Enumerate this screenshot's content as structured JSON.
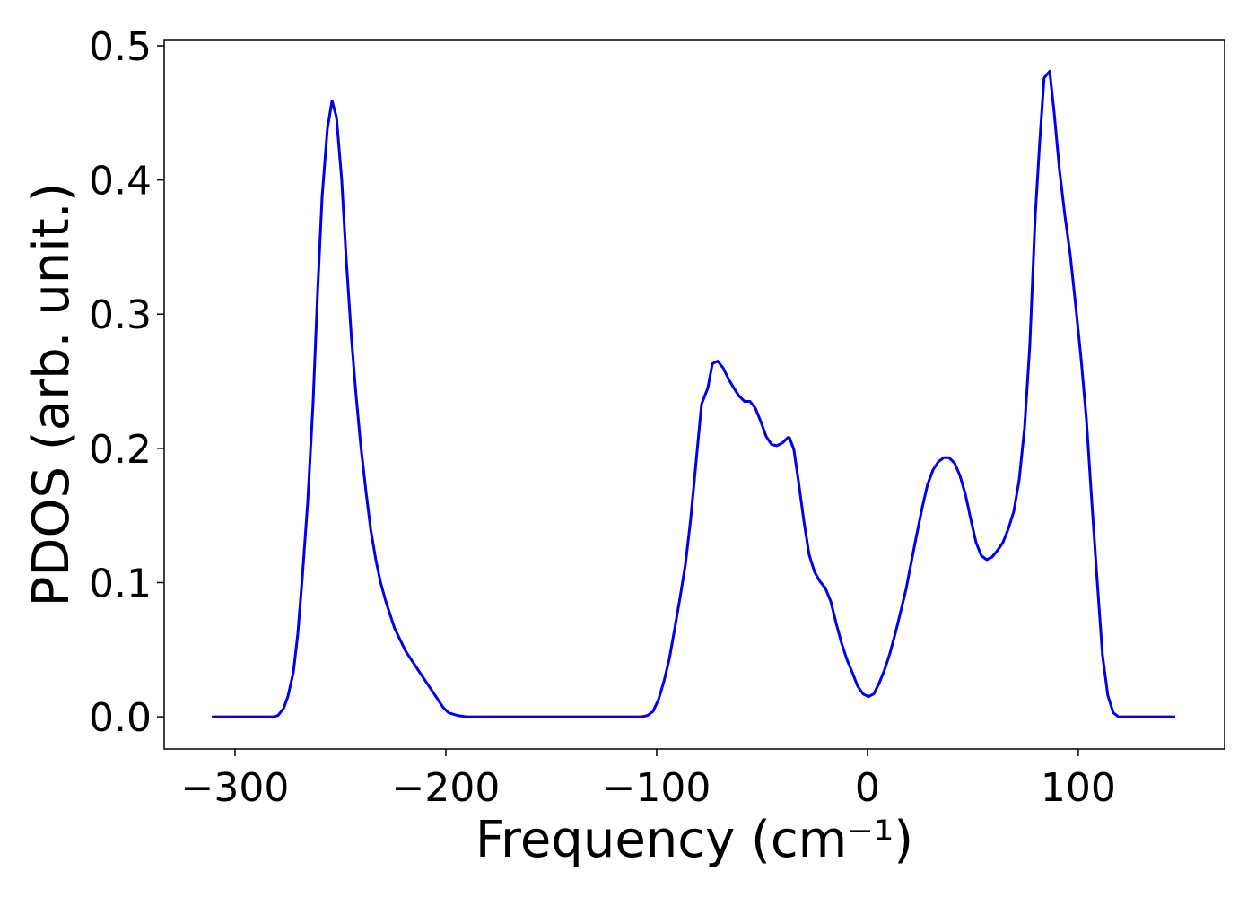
{
  "chart_data": {
    "type": "line",
    "xlabel": "Frequency (cm⁻¹)",
    "ylabel": "PDOS (arb. unit.)",
    "xlim": [
      -333.6,
      169.4
    ],
    "ylim": [
      -0.024,
      0.504
    ],
    "xticks": [
      {
        "value": -300,
        "label": "−300"
      },
      {
        "value": -200,
        "label": "−200"
      },
      {
        "value": -100,
        "label": "−100"
      },
      0,
      100
    ],
    "yticks": [
      {
        "value": 0,
        "label": "0.0"
      },
      0.1,
      0.2,
      0.3,
      0.4,
      0.5
    ],
    "grid": false,
    "series": [
      {
        "color": "#0000ee",
        "x": [
          -311,
          -281.7,
          -279.6,
          -277,
          -274.9,
          -272.3,
          -270.2,
          -268.1,
          -265.5,
          -263,
          -260.9,
          -258.7,
          -256.2,
          -254,
          -251.9,
          -249.4,
          -247.2,
          -244.7,
          -242.6,
          -240.4,
          -237.9,
          -235.7,
          -233.2,
          -231.1,
          -228.5,
          -224.3,
          -219.1,
          -213.2,
          -207.2,
          -201.3,
          -198.7,
          -194.5,
          -190.2,
          -107.2,
          -104.3,
          -101.7,
          -99.1,
          -96.6,
          -94,
          -91.5,
          -89,
          -86.4,
          -83.8,
          -81.3,
          -78.7,
          -75.7,
          -73.6,
          -71.1,
          -68.5,
          -66,
          -63.4,
          -60.9,
          -58.3,
          -55.7,
          -53.2,
          -50.6,
          -48.1,
          -45.5,
          -43,
          -40.4,
          -37.9,
          -37,
          -34.9,
          -32.8,
          -30.2,
          -27.7,
          -25.1,
          -22.6,
          -20,
          -17.4,
          -14.9,
          -12.3,
          -9.8,
          -7.2,
          -4.7,
          -2.1,
          0.4,
          3,
          5.5,
          8.1,
          10.6,
          13.2,
          15.7,
          18.3,
          20.9,
          23.4,
          26,
          28.5,
          31.1,
          33.6,
          36.2,
          38.7,
          41.3,
          43.8,
          46.4,
          48.9,
          51.5,
          54,
          56.6,
          59.1,
          61.7,
          64.3,
          66.8,
          69.4,
          71.9,
          74.5,
          77,
          79.6,
          81.7,
          83.8,
          86.4,
          88.5,
          91.1,
          93.6,
          96.2,
          98.7,
          101.3,
          103.8,
          106.4,
          109,
          111.5,
          114,
          116.6,
          119.1,
          146
        ],
        "values": [
          0,
          0,
          0.001,
          0.006,
          0.015,
          0.033,
          0.062,
          0.103,
          0.16,
          0.233,
          0.313,
          0.387,
          0.438,
          0.459,
          0.447,
          0.4,
          0.34,
          0.281,
          0.24,
          0.203,
          0.168,
          0.14,
          0.117,
          0.101,
          0.086,
          0.066,
          0.049,
          0.035,
          0.021,
          0.007,
          0.003,
          0.001,
          0,
          0,
          0.001,
          0.004,
          0.013,
          0.026,
          0.043,
          0.065,
          0.088,
          0.113,
          0.148,
          0.19,
          0.233,
          0.245,
          0.263,
          0.265,
          0.26,
          0.252,
          0.245,
          0.239,
          0.235,
          0.235,
          0.23,
          0.22,
          0.209,
          0.203,
          0.202,
          0.204,
          0.208,
          0.208,
          0.199,
          0.176,
          0.146,
          0.121,
          0.108,
          0.101,
          0.096,
          0.086,
          0.07,
          0.055,
          0.043,
          0.033,
          0.023,
          0.017,
          0.015,
          0.017,
          0.025,
          0.035,
          0.047,
          0.062,
          0.078,
          0.095,
          0.116,
          0.136,
          0.156,
          0.173,
          0.184,
          0.19,
          0.193,
          0.193,
          0.189,
          0.18,
          0.166,
          0.148,
          0.13,
          0.12,
          0.117,
          0.119,
          0.124,
          0.13,
          0.14,
          0.153,
          0.176,
          0.215,
          0.277,
          0.374,
          0.428,
          0.476,
          0.481,
          0.451,
          0.407,
          0.374,
          0.344,
          0.307,
          0.267,
          0.223,
          0.16,
          0.1,
          0.046,
          0.016,
          0.003,
          0,
          0
        ]
      }
    ]
  }
}
